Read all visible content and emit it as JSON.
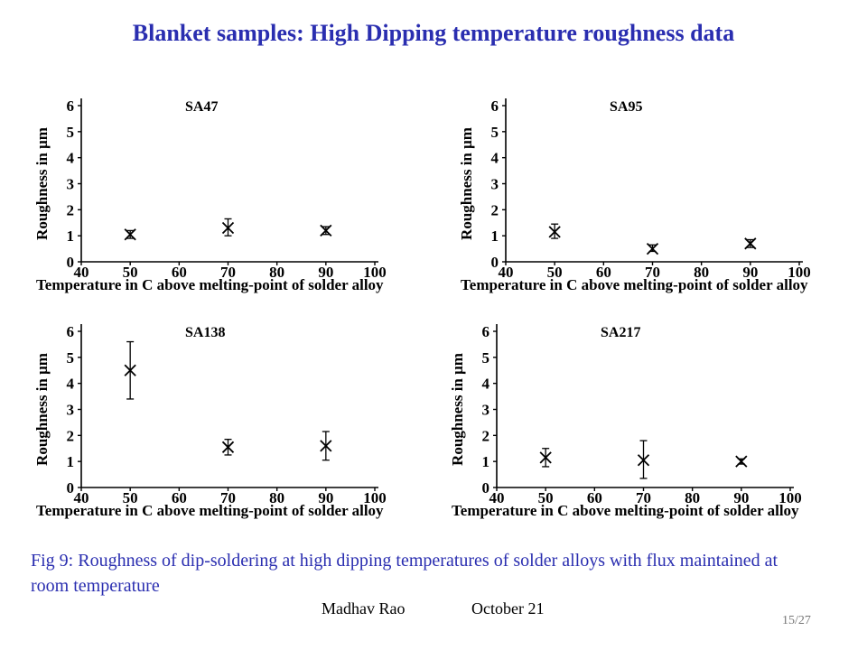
{
  "title": "Blanket samples: High Dipping temperature roughness data",
  "caption": "Fig 9: Roughness of dip-soldering at high dipping temperatures of  solder alloys with flux maintained at room temperature",
  "footer": {
    "author": "Madhav Rao",
    "date": "October 21",
    "page": "15/27"
  },
  "colors": {
    "title": "#2a2eb0",
    "caption": "#2a2eb0",
    "plot": "#000000"
  },
  "chart_data": [
    {
      "type": "scatter",
      "title": "SA47",
      "xlabel": "Temperature in C above melting-point of solder alloy",
      "ylabel": "Roughness in μm",
      "xlim": [
        40,
        100
      ],
      "ylim": [
        0,
        6
      ],
      "xticks": [
        40,
        50,
        60,
        70,
        80,
        90,
        100
      ],
      "yticks": [
        0,
        1,
        2,
        3,
        4,
        5,
        6
      ],
      "x": [
        50,
        70,
        90
      ],
      "y": [
        1.05,
        1.3,
        1.2
      ],
      "err_low": [
        0.9,
        1.0,
        1.05
      ],
      "err_high": [
        1.2,
        1.65,
        1.35
      ]
    },
    {
      "type": "scatter",
      "title": "SA95",
      "xlabel": "Temperature in C above melting-point of solder alloy",
      "ylabel": "Roughness in μm",
      "xlim": [
        40,
        100
      ],
      "ylim": [
        0,
        6
      ],
      "xticks": [
        40,
        50,
        60,
        70,
        80,
        90,
        100
      ],
      "yticks": [
        0,
        1,
        2,
        3,
        4,
        5,
        6
      ],
      "x": [
        50,
        70,
        90
      ],
      "y": [
        1.15,
        0.5,
        0.7
      ],
      "err_low": [
        0.9,
        0.4,
        0.55
      ],
      "err_high": [
        1.45,
        0.65,
        0.85
      ]
    },
    {
      "type": "scatter",
      "title": "SA138",
      "xlabel": "Temperature in C above melting-point of solder alloy",
      "ylabel": "Roughness in μm",
      "xlim": [
        40,
        100
      ],
      "ylim": [
        0,
        6
      ],
      "xticks": [
        40,
        50,
        60,
        70,
        80,
        90,
        100
      ],
      "yticks": [
        0,
        1,
        2,
        3,
        4,
        5,
        6
      ],
      "x": [
        50,
        70,
        90
      ],
      "y": [
        4.5,
        1.55,
        1.6
      ],
      "err_low": [
        3.4,
        1.25,
        1.05
      ],
      "err_high": [
        5.6,
        1.85,
        2.15
      ]
    },
    {
      "type": "scatter",
      "title": "SA217",
      "xlabel": "Temperature in C above melting-point of solder alloy",
      "ylabel": "Roughness in μm",
      "xlim": [
        40,
        100
      ],
      "ylim": [
        0,
        6
      ],
      "xticks": [
        40,
        50,
        60,
        70,
        80,
        90,
        100
      ],
      "yticks": [
        0,
        1,
        2,
        3,
        4,
        5,
        6
      ],
      "x": [
        50,
        70,
        90
      ],
      "y": [
        1.15,
        1.05,
        1.0
      ],
      "err_low": [
        0.8,
        0.35,
        0.9
      ],
      "err_high": [
        1.5,
        1.8,
        1.1
      ]
    }
  ]
}
